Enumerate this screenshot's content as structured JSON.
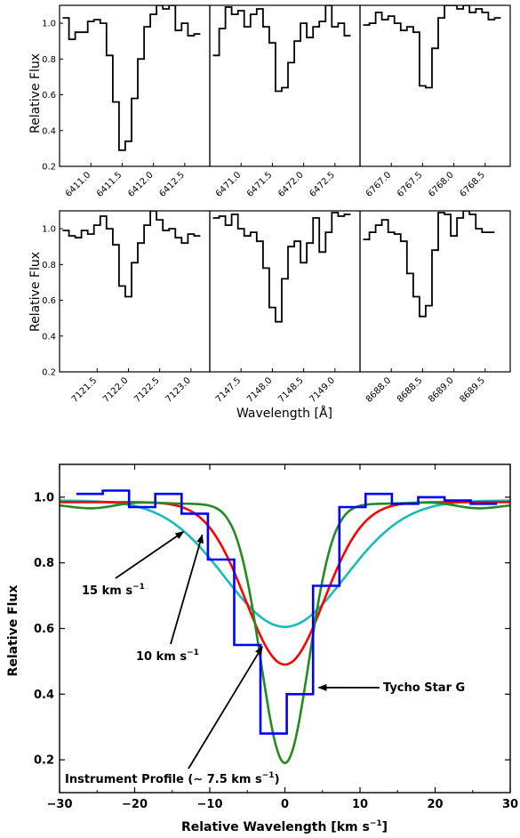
{
  "chart_data": [
    {
      "type": "line",
      "title": "",
      "panel": "top-row",
      "ylabel": "Relative Flux",
      "ylim": [
        0.2,
        1.1
      ],
      "yticks": [
        "0.2",
        "0.4",
        "0.6",
        "0.8",
        "1.0"
      ],
      "subplots": [
        {
          "xlim": [
            6410.5,
            6412.9
          ],
          "xticks": [
            "6411.0",
            "6411.5",
            "6412.0",
            "6412.5"
          ],
          "series": [
            {
              "x": [
                6410.6,
                6410.7,
                6410.8,
                6410.9,
                6411.0,
                6411.1,
                6411.2,
                6411.3,
                6411.4,
                6411.5,
                6411.6,
                6411.7,
                6411.8,
                6411.9,
                6412.0,
                6412.1,
                6412.2,
                6412.3,
                6412.4,
                6412.5,
                6412.6,
                6412.7
              ],
              "y": [
                1.03,
                0.91,
                0.95,
                0.95,
                1.01,
                1.02,
                1.0,
                0.82,
                0.56,
                0.29,
                0.34,
                0.58,
                0.8,
                0.98,
                1.05,
                1.1,
                1.08,
                1.1,
                0.96,
                1.0,
                0.93,
                0.94
              ]
            }
          ]
        },
        {
          "xlim": [
            6470.5,
            6472.9
          ],
          "xticks": [
            "6471.0",
            "6471.5",
            "6472.0",
            "6472.5"
          ],
          "series": [
            {
              "x": [
                6470.6,
                6470.7,
                6470.8,
                6470.9,
                6471.0,
                6471.1,
                6471.2,
                6471.3,
                6471.4,
                6471.5,
                6471.6,
                6471.7,
                6471.8,
                6471.9,
                6472.0,
                6472.1,
                6472.2,
                6472.3,
                6472.4,
                6472.5,
                6472.6,
                6472.7
              ],
              "y": [
                0.82,
                0.97,
                1.09,
                1.05,
                1.07,
                0.98,
                1.05,
                1.08,
                0.98,
                0.89,
                0.62,
                0.64,
                0.78,
                0.9,
                1.0,
                0.92,
                0.98,
                1.01,
                1.1,
                0.98,
                1.0,
                0.93
              ]
            }
          ]
        },
        {
          "xlim": [
            6766.5,
            6768.9
          ],
          "xticks": [
            "6767.0",
            "6767.5",
            "6768.0",
            "6768.5"
          ],
          "series": [
            {
              "x": [
                6766.6,
                6766.7,
                6766.8,
                6766.9,
                6767.0,
                6767.1,
                6767.2,
                6767.3,
                6767.4,
                6767.5,
                6767.6,
                6767.7,
                6767.8,
                6767.9,
                6768.0,
                6768.1,
                6768.2,
                6768.3,
                6768.4,
                6768.5,
                6768.6,
                6768.7
              ],
              "y": [
                0.99,
                1.0,
                1.06,
                1.02,
                1.04,
                1.0,
                0.96,
                0.98,
                0.95,
                0.65,
                0.64,
                0.86,
                1.03,
                1.1,
                1.1,
                1.08,
                1.1,
                1.06,
                1.08,
                1.06,
                1.02,
                1.03
              ]
            }
          ]
        }
      ]
    },
    {
      "type": "line",
      "title": "",
      "panel": "middle-row",
      "xlabel": "Wavelength [Å]",
      "ylabel": "Relative Flux",
      "ylim": [
        0.2,
        1.1
      ],
      "yticks": [
        "0.2",
        "0.4",
        "0.6",
        "0.8",
        "1.0"
      ],
      "subplots": [
        {
          "xlim": [
            7120.9,
            7123.3
          ],
          "xticks": [
            "7121.5",
            "7122.0",
            "7122.5",
            "7123.0"
          ],
          "series": [
            {
              "x": [
                7121.0,
                7121.1,
                7121.2,
                7121.3,
                7121.4,
                7121.5,
                7121.6,
                7121.7,
                7121.8,
                7121.9,
                7122.0,
                7122.1,
                7122.2,
                7122.3,
                7122.4,
                7122.5,
                7122.6,
                7122.7,
                7122.8,
                7122.9,
                7123.0,
                7123.1
              ],
              "y": [
                0.99,
                0.96,
                0.95,
                0.99,
                0.97,
                1.02,
                1.07,
                1.0,
                0.91,
                0.68,
                0.62,
                0.81,
                0.92,
                1.02,
                1.1,
                1.05,
                0.99,
                1.0,
                0.95,
                0.92,
                0.97,
                0.96
              ]
            }
          ]
        },
        {
          "xlim": [
            7147.0,
            7149.4
          ],
          "xticks": [
            "7147.5",
            "7148.0",
            "7148.5",
            "7149.0"
          ],
          "series": [
            {
              "x": [
                7147.1,
                7147.2,
                7147.3,
                7147.4,
                7147.5,
                7147.6,
                7147.7,
                7147.8,
                7147.9,
                7148.0,
                7148.1,
                7148.2,
                7148.3,
                7148.4,
                7148.5,
                7148.6,
                7148.7,
                7148.8,
                7148.9,
                7149.0,
                7149.1,
                7149.2
              ],
              "y": [
                1.06,
                1.07,
                1.02,
                1.08,
                1.0,
                0.96,
                0.98,
                0.93,
                0.78,
                0.56,
                0.48,
                0.72,
                0.9,
                0.93,
                0.81,
                0.92,
                1.06,
                0.87,
                0.98,
                1.09,
                1.07,
                1.08
              ]
            }
          ]
        },
        {
          "xlim": [
            8687.5,
            8689.9
          ],
          "xticks": [
            "8688.0",
            "8688.5",
            "8689.0",
            "8689.5"
          ],
          "series": [
            {
              "x": [
                8687.6,
                8687.7,
                8687.8,
                8687.9,
                8688.0,
                8688.1,
                8688.2,
                8688.3,
                8688.4,
                8688.5,
                8688.6,
                8688.7,
                8688.8,
                8688.9,
                8689.0,
                8689.1,
                8689.2,
                8689.3,
                8689.4,
                8689.5,
                8689.6
              ],
              "y": [
                0.94,
                0.98,
                1.02,
                1.05,
                0.98,
                0.97,
                0.93,
                0.75,
                0.62,
                0.51,
                0.57,
                0.88,
                1.09,
                1.08,
                0.96,
                1.06,
                1.1,
                1.08,
                1.0,
                0.98,
                0.98
              ]
            }
          ]
        }
      ]
    },
    {
      "type": "line",
      "title": "",
      "panel": "bottom",
      "xlabel": "Relative Wavelength [km s⁻¹]",
      "ylabel": "Relative Flux",
      "xlim": [
        -30,
        30
      ],
      "ylim": [
        0.1,
        1.1
      ],
      "xticks": [
        "−30",
        "−20",
        "−10",
        "0",
        "10",
        "20",
        "30"
      ],
      "yticks": [
        "0.2",
        "0.4",
        "0.6",
        "0.8",
        "1.0"
      ],
      "series": [
        {
          "color": "#0000ff",
          "style": "step",
          "x": [
            -26.0,
            -22.5,
            -19.0,
            -15.5,
            -12.0,
            -8.5,
            -5.0,
            -1.5,
            2.0,
            5.5,
            9.0,
            12.5,
            16.0,
            19.5,
            23.0,
            26.5
          ],
          "y": [
            1.01,
            1.02,
            0.97,
            1.01,
            0.95,
            0.81,
            0.55,
            0.28,
            0.4,
            0.73,
            0.97,
            1.01,
            0.98,
            1.0,
            0.99,
            0.98
          ]
        },
        {
          "color": "#228b22",
          "curve": "gaussian",
          "x": [
            -30,
            30
          ],
          "continuum": 0.98,
          "depth": 0.79,
          "sigma_kms": 3.2
        },
        {
          "color": "#ff0000",
          "curve": "gaussian",
          "x": [
            -30,
            30
          ],
          "continuum": 0.985,
          "depth": 0.495,
          "sigma_kms": 5.2
        },
        {
          "color": "#17bcbc",
          "curve": "gaussian",
          "x": [
            -30,
            30
          ],
          "continuum": 0.99,
          "depth": 0.385,
          "sigma_kms": 8.0
        }
      ],
      "annotations": [
        {
          "text": "15 km s",
          "sup": "−1",
          "points_to": [
            -13.5,
            0.895
          ]
        },
        {
          "text": "10 km s",
          "sup": "−1",
          "points_to": [
            -11.0,
            0.885
          ]
        },
        {
          "text": "Tycho Star G",
          "points_to": [
            4.5,
            0.42
          ]
        },
        {
          "text": "Instrument Profile (∼ 7.5 km s",
          "sup": "−1",
          "tail": ")",
          "points_to": [
            -3.0,
            0.545
          ]
        }
      ]
    }
  ],
  "colors": {
    "blue_step": "#0000ff",
    "green": "#228b22",
    "red": "#ff0000",
    "cyan": "#17bcbc",
    "axes": "#000000"
  }
}
